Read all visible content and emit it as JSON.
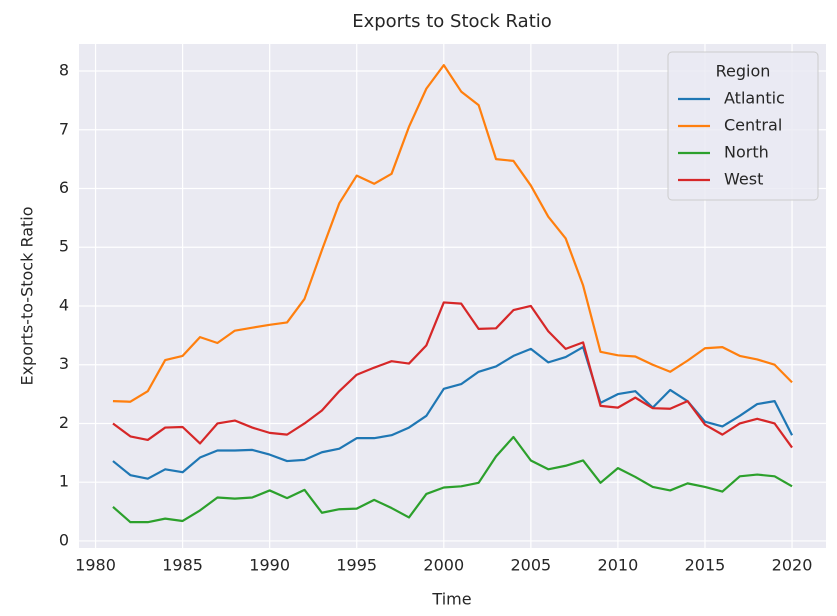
{
  "chart_data": {
    "type": "line",
    "title": "Exports to Stock Ratio",
    "xlabel": "Time",
    "ylabel": "Exports-to-Stock Ratio",
    "x": [
      1981,
      1982,
      1983,
      1984,
      1985,
      1986,
      1987,
      1988,
      1989,
      1990,
      1991,
      1992,
      1993,
      1994,
      1995,
      1996,
      1997,
      1998,
      1999,
      2000,
      2001,
      2002,
      2003,
      2004,
      2005,
      2006,
      2007,
      2008,
      2009,
      2010,
      2011,
      2012,
      2013,
      2014,
      2015,
      2016,
      2017,
      2018,
      2019,
      2020
    ],
    "series": [
      {
        "name": "Atlantic",
        "color": "#1f77b4",
        "values": [
          1.36,
          1.12,
          1.06,
          1.22,
          1.17,
          1.42,
          1.54,
          1.54,
          1.55,
          1.47,
          1.36,
          1.38,
          1.51,
          1.57,
          1.75,
          1.75,
          1.8,
          1.93,
          2.13,
          2.59,
          2.67,
          2.88,
          2.97,
          3.15,
          3.27,
          3.04,
          3.13,
          3.3,
          2.35,
          2.5,
          2.55,
          2.27,
          2.57,
          2.38,
          2.03,
          1.95,
          2.13,
          2.33,
          2.38,
          1.8
        ]
      },
      {
        "name": "Central",
        "color": "#ff7f0e",
        "values": [
          2.38,
          2.37,
          2.55,
          3.08,
          3.15,
          3.47,
          3.37,
          3.58,
          3.63,
          3.68,
          3.72,
          4.12,
          4.95,
          5.75,
          6.22,
          6.08,
          6.25,
          7.05,
          7.7,
          8.1,
          7.65,
          7.42,
          6.5,
          6.47,
          6.05,
          5.52,
          5.15,
          4.35,
          3.22,
          3.16,
          3.14,
          3.0,
          2.88,
          3.07,
          3.28,
          3.3,
          3.15,
          3.09,
          3.0,
          2.7
        ]
      },
      {
        "name": "North",
        "color": "#2ca02c",
        "values": [
          0.58,
          0.32,
          0.32,
          0.38,
          0.34,
          0.52,
          0.74,
          0.72,
          0.74,
          0.86,
          0.73,
          0.87,
          0.48,
          0.54,
          0.55,
          0.7,
          0.56,
          0.4,
          0.8,
          0.91,
          0.93,
          0.99,
          1.44,
          1.77,
          1.37,
          1.22,
          1.28,
          1.37,
          0.99,
          1.24,
          1.09,
          0.92,
          0.86,
          0.98,
          0.92,
          0.84,
          1.1,
          1.13,
          1.1,
          0.93
        ]
      },
      {
        "name": "West",
        "color": "#d62728",
        "values": [
          2.0,
          1.78,
          1.72,
          1.93,
          1.94,
          1.66,
          2.0,
          2.05,
          1.93,
          1.84,
          1.81,
          2.0,
          2.22,
          2.55,
          2.83,
          2.95,
          3.06,
          3.02,
          3.33,
          4.06,
          4.04,
          3.61,
          3.62,
          3.93,
          4.0,
          3.57,
          3.27,
          3.38,
          2.3,
          2.27,
          2.44,
          2.26,
          2.25,
          2.38,
          1.98,
          1.81,
          2.0,
          2.08,
          2.0,
          1.59
        ]
      }
    ],
    "legend_title": "Region",
    "legend": "upper right",
    "grid": true,
    "xlim": [
      1979.05,
      2021.95
    ],
    "xticks": [
      1980,
      1985,
      1990,
      1995,
      2000,
      2005,
      2010,
      2015,
      2020
    ],
    "ylim": [
      -0.12,
      8.46
    ],
    "yticks": [
      0,
      1,
      2,
      3,
      4,
      5,
      6,
      7,
      8
    ]
  }
}
